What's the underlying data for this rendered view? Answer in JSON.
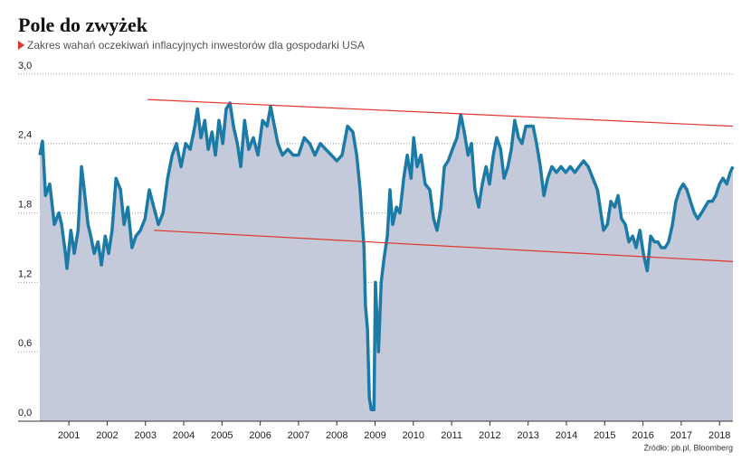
{
  "chart_data": {
    "type": "area",
    "title": "Pole do zwyżek",
    "subtitle": "Zakres wahań oczekiwań inflacyjnych inwestorów dla gospodarki USA",
    "source": "Źródło: pb.pl, Bloomberg",
    "x": [
      2000.24,
      2000.31,
      2000.39,
      2000.5,
      2000.62,
      2000.74,
      2000.81,
      2000.91,
      2000.95,
      2001.05,
      2001.14,
      2001.24,
      2001.33,
      2001.4,
      2001.5,
      2001.57,
      2001.66,
      2001.76,
      2001.85,
      2001.95,
      2002.04,
      2002.13,
      2002.23,
      2002.35,
      2002.44,
      2002.54,
      2002.65,
      2002.75,
      2002.87,
      2002.99,
      2003.1,
      2003.22,
      2003.34,
      2003.46,
      2003.58,
      2003.7,
      2003.81,
      2003.93,
      2004.05,
      2004.17,
      2004.29,
      2004.36,
      2004.45,
      2004.55,
      2004.64,
      2004.74,
      2004.83,
      2004.92,
      2005.02,
      2005.11,
      2005.21,
      2005.3,
      2005.4,
      2005.49,
      2005.59,
      2005.7,
      2005.82,
      2005.94,
      2006.06,
      2006.18,
      2006.27,
      2006.37,
      2006.46,
      2006.58,
      2006.72,
      2006.86,
      2007.0,
      2007.15,
      2007.29,
      2007.43,
      2007.57,
      2007.71,
      2007.86,
      2008.0,
      2008.14,
      2008.28,
      2008.42,
      2008.52,
      2008.61,
      2008.71,
      2008.75,
      2008.8,
      2008.85,
      2008.9,
      2008.97,
      2009.01,
      2009.09,
      2009.16,
      2009.23,
      2009.32,
      2009.39,
      2009.46,
      2009.56,
      2009.65,
      2009.75,
      2009.84,
      2009.94,
      2010.01,
      2010.1,
      2010.2,
      2010.31,
      2010.43,
      2010.53,
      2010.62,
      2010.72,
      2010.81,
      2010.91,
      2011.02,
      2011.14,
      2011.24,
      2011.33,
      2011.43,
      2011.52,
      2011.61,
      2011.71,
      2011.8,
      2011.9,
      2011.99,
      2012.09,
      2012.18,
      2012.28,
      2012.37,
      2012.47,
      2012.56,
      2012.65,
      2012.75,
      2012.84,
      2012.94,
      2013.03,
      2013.13,
      2013.22,
      2013.32,
      2013.41,
      2013.51,
      2013.62,
      2013.74,
      2013.86,
      2013.98,
      2014.1,
      2014.22,
      2014.33,
      2014.45,
      2014.57,
      2014.69,
      2014.81,
      2014.9,
      2014.97,
      2015.07,
      2015.16,
      2015.26,
      2015.35,
      2015.44,
      2015.54,
      2015.63,
      2015.73,
      2015.82,
      2015.92,
      2016.01,
      2016.11,
      2016.2,
      2016.3,
      2016.39,
      2016.48,
      2016.58,
      2016.67,
      2016.77,
      2016.86,
      2016.96,
      2017.05,
      2017.15,
      2017.24,
      2017.34,
      2017.43,
      2017.53,
      2017.62,
      2017.71,
      2017.81,
      2017.9,
      2018.0,
      2018.09,
      2018.19,
      2018.28,
      2018.35
    ],
    "series": [
      {
        "color": "#1c7aa6",
        "fill": "#c4cad9",
        "values": [
          2.3,
          2.42,
          1.95,
          2.05,
          1.7,
          1.8,
          1.7,
          1.45,
          1.32,
          1.65,
          1.45,
          1.65,
          2.2,
          2.0,
          1.7,
          1.6,
          1.45,
          1.55,
          1.35,
          1.6,
          1.45,
          1.65,
          2.1,
          2.0,
          1.7,
          1.85,
          1.5,
          1.6,
          1.65,
          1.75,
          2.0,
          1.85,
          1.7,
          1.8,
          2.1,
          2.3,
          2.4,
          2.2,
          2.4,
          2.35,
          2.55,
          2.7,
          2.45,
          2.6,
          2.35,
          2.5,
          2.3,
          2.6,
          2.4,
          2.7,
          2.75,
          2.55,
          2.4,
          2.2,
          2.6,
          2.35,
          2.45,
          2.3,
          2.6,
          2.55,
          2.72,
          2.55,
          2.4,
          2.3,
          2.35,
          2.3,
          2.3,
          2.45,
          2.4,
          2.3,
          2.4,
          2.35,
          2.3,
          2.25,
          2.3,
          2.55,
          2.5,
          2.3,
          2.0,
          1.5,
          1.0,
          0.8,
          0.2,
          0.1,
          0.1,
          1.2,
          0.6,
          1.2,
          1.4,
          1.6,
          2.0,
          1.7,
          1.85,
          1.8,
          2.1,
          2.3,
          2.1,
          2.45,
          2.2,
          2.3,
          2.05,
          2.0,
          1.75,
          1.65,
          1.85,
          2.2,
          2.25,
          2.35,
          2.45,
          2.65,
          2.5,
          2.3,
          2.4,
          2.0,
          1.85,
          2.05,
          2.2,
          2.05,
          2.3,
          2.45,
          2.35,
          2.1,
          2.2,
          2.35,
          2.6,
          2.45,
          2.4,
          2.55,
          2.55,
          2.55,
          2.4,
          2.2,
          1.95,
          2.1,
          2.2,
          2.15,
          2.2,
          2.15,
          2.2,
          2.15,
          2.2,
          2.25,
          2.2,
          2.1,
          2.0,
          1.8,
          1.65,
          1.7,
          1.9,
          1.85,
          1.95,
          1.75,
          1.7,
          1.55,
          1.6,
          1.5,
          1.65,
          1.45,
          1.3,
          1.6,
          1.55,
          1.55,
          1.5,
          1.5,
          1.55,
          1.7,
          1.9,
          2.0,
          2.05,
          2.0,
          1.9,
          1.8,
          1.75,
          1.8,
          1.85,
          1.9,
          1.9,
          1.95,
          2.05,
          2.1,
          2.05,
          2.15,
          2.2
        ]
      }
    ],
    "trend_lines": [
      {
        "color": "#e0332b",
        "x": [
          2003.06,
          2018.35
        ],
        "values": [
          2.78,
          2.55
        ]
      },
      {
        "color": "#e0332b",
        "x": [
          2003.22,
          2018.35
        ],
        "values": [
          1.65,
          1.38
        ]
      }
    ],
    "xlim": [
      2000.24,
      2018.35
    ],
    "xticks": [
      2001,
      2002,
      2003,
      2004,
      2005,
      2006,
      2007,
      2008,
      2009,
      2010,
      2011,
      2012,
      2013,
      2014,
      2015,
      2016,
      2017,
      2018
    ],
    "ylim": [
      0,
      3
    ],
    "yticks": [
      {
        "value": 0,
        "label": "0,0"
      },
      {
        "value": 0.6,
        "label": "0,6"
      },
      {
        "value": 1.2,
        "label": "1,2"
      },
      {
        "value": 1.8,
        "label": "1,8"
      },
      {
        "value": 2.4,
        "label": "2,4"
      },
      {
        "value": 3,
        "label": "3,0"
      }
    ],
    "grid": true
  }
}
